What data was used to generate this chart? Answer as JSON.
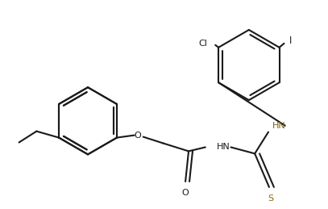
{
  "bg_color": "#ffffff",
  "line_color": "#1a1a1a",
  "bond_lw": 1.5,
  "dbo": 0.007,
  "label_cl": "Cl",
  "label_i": "I",
  "label_o": "O",
  "label_hn1": "HN",
  "label_hn2": "HN",
  "label_s": "S",
  "label_carbonyl_o": "O",
  "text_color_dark": "#1a1a1a",
  "text_color_hn": "#7a6010",
  "text_color_s": "#8B6914"
}
